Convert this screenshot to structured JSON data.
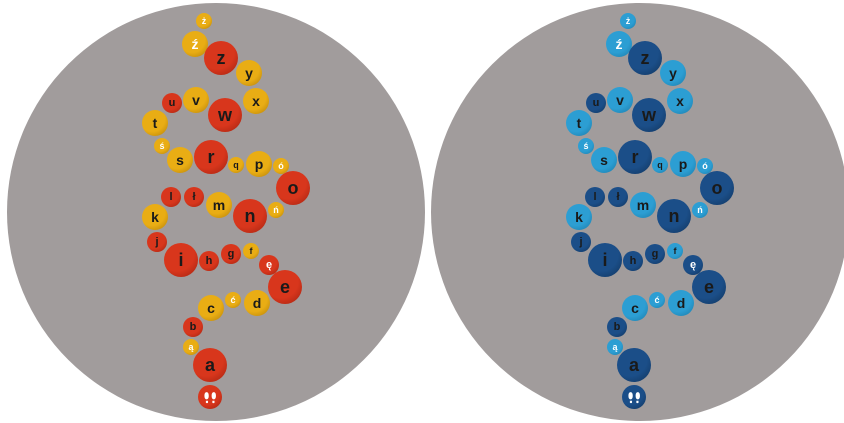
{
  "colors": {
    "background": "#ffffff",
    "board": "#a19c9c",
    "warm": {
      "light": "#e9ad14",
      "dark": "#d8361c",
      "light_edge": "#b27e08",
      "dark_edge": "#9f210f"
    },
    "cool": {
      "light": "#2c9ed3",
      "dark": "#1b4e88",
      "light_edge": "#1a79a6",
      "dark_edge": "#0f335c"
    }
  },
  "boards": [
    {
      "id": "warm-board",
      "palette": "warm"
    },
    {
      "id": "cool-board",
      "palette": "cool"
    }
  ],
  "letters": [
    {
      "id": "zdot",
      "label": "ż",
      "tone": "light"
    },
    {
      "id": "zacute",
      "label": "ź",
      "tone": "light"
    },
    {
      "id": "z",
      "label": "z",
      "tone": "dark"
    },
    {
      "id": "y",
      "label": "y",
      "tone": "light"
    },
    {
      "id": "u",
      "label": "u",
      "tone": "dark"
    },
    {
      "id": "v",
      "label": "v",
      "tone": "light"
    },
    {
      "id": "x",
      "label": "x",
      "tone": "light"
    },
    {
      "id": "w",
      "label": "w",
      "tone": "dark"
    },
    {
      "id": "t",
      "label": "t",
      "tone": "light"
    },
    {
      "id": "sacute",
      "label": "ś",
      "tone": "light"
    },
    {
      "id": "s",
      "label": "s",
      "tone": "light"
    },
    {
      "id": "r",
      "label": "r",
      "tone": "dark"
    },
    {
      "id": "q",
      "label": "q",
      "tone": "light"
    },
    {
      "id": "p",
      "label": "p",
      "tone": "light"
    },
    {
      "id": "oacute",
      "label": "ó",
      "tone": "light"
    },
    {
      "id": "o",
      "label": "o",
      "tone": "dark"
    },
    {
      "id": "l",
      "label": "l",
      "tone": "dark"
    },
    {
      "id": "lstroke",
      "label": "ł",
      "tone": "dark"
    },
    {
      "id": "m",
      "label": "m",
      "tone": "light"
    },
    {
      "id": "n",
      "label": "n",
      "tone": "dark"
    },
    {
      "id": "nacute",
      "label": "ń",
      "tone": "light"
    },
    {
      "id": "k",
      "label": "k",
      "tone": "light"
    },
    {
      "id": "j",
      "label": "j",
      "tone": "dark"
    },
    {
      "id": "i",
      "label": "i",
      "tone": "dark"
    },
    {
      "id": "h",
      "label": "h",
      "tone": "dark"
    },
    {
      "id": "g",
      "label": "g",
      "tone": "dark"
    },
    {
      "id": "f",
      "label": "f",
      "tone": "light"
    },
    {
      "id": "eogonek",
      "label": "ę",
      "tone": "dark"
    },
    {
      "id": "e",
      "label": "e",
      "tone": "dark"
    },
    {
      "id": "c",
      "label": "c",
      "tone": "light"
    },
    {
      "id": "cacute",
      "label": "ć",
      "tone": "light"
    },
    {
      "id": "d",
      "label": "d",
      "tone": "light"
    },
    {
      "id": "b",
      "label": "b",
      "tone": "dark"
    },
    {
      "id": "aogonek",
      "label": "ą",
      "tone": "light"
    },
    {
      "id": "a",
      "label": "a",
      "tone": "dark"
    },
    {
      "id": "start",
      "label": "",
      "tone": "dark",
      "icon": "footprints-icon"
    }
  ]
}
